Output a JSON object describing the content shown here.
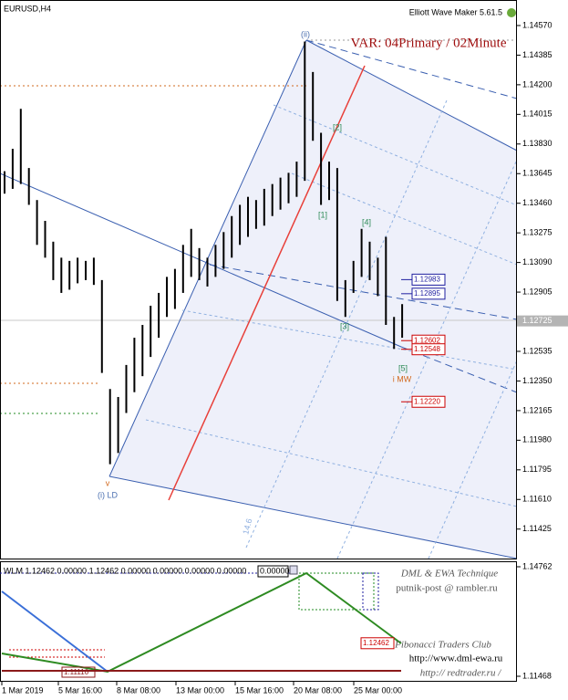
{
  "chart_data": [
    {
      "type": "ohlc",
      "title": "EURUSD,H4",
      "subtitle": "Elliott Wave Maker 5.61.5",
      "annotation": "VAR: 04Primary / 02Minute",
      "color": "#000000",
      "high": [
        1.1366,
        1.138,
        1.1405,
        1.1368,
        1.1348,
        1.1335,
        1.1322,
        1.1312,
        1.131,
        1.1312,
        1.131,
        1.1312,
        1.1298,
        1.123,
        1.1225,
        1.1245,
        1.1262,
        1.127,
        1.1282,
        1.129,
        1.13,
        1.1305,
        1.132,
        1.133,
        1.1318,
        1.1312,
        1.132,
        1.1328,
        1.1338,
        1.1345,
        1.135,
        1.1348,
        1.1355,
        1.1358,
        1.1362,
        1.1365,
        1.1372,
        1.1447,
        1.1428,
        1.139,
        1.1372,
        1.1368,
        1.1298,
        1.131,
        1.133,
        1.1322,
        1.1312,
        1.1325,
        1.1275,
        1.1283
      ],
      "low": [
        1.1352,
        1.1355,
        1.1358,
        1.1345,
        1.132,
        1.1312,
        1.1298,
        1.129,
        1.1292,
        1.1296,
        1.1298,
        1.1295,
        1.124,
        1.1183,
        1.119,
        1.1215,
        1.1228,
        1.1238,
        1.125,
        1.1262,
        1.1275,
        1.128,
        1.129,
        1.13,
        1.1298,
        1.1294,
        1.13,
        1.1305,
        1.1312,
        1.132,
        1.1325,
        1.133,
        1.1332,
        1.1338,
        1.1342,
        1.1346,
        1.135,
        1.136,
        1.1385,
        1.1345,
        1.1348,
        1.1285,
        1.1275,
        1.129,
        1.13,
        1.1298,
        1.1288,
        1.127,
        1.1255,
        1.1262
      ],
      "ylim": [
        1.11241,
        1.14718
      ],
      "yticks": [
        {
          "value": 1.1457,
          "label": "1.14570"
        },
        1.14385,
        {
          "value": 1.142,
          "label": "1.14200"
        },
        1.14015,
        {
          "value": 1.1383,
          "label": "1.13830"
        },
        1.13645,
        {
          "value": 1.1346,
          "label": "1.13460"
        },
        1.13275,
        {
          "value": 1.1309,
          "label": "1.13090"
        },
        1.12905,
        1.12535,
        {
          "value": 1.1235,
          "label": "1.12350"
        },
        1.12165,
        {
          "value": 1.1198,
          "label": "1.11980"
        },
        1.11795,
        {
          "value": 1.1161,
          "label": "1.11610"
        },
        1.11425
      ],
      "current_price": 1.12725,
      "price_tags": [
        {
          "value": 1.12983,
          "color": "#1f1fa0"
        },
        {
          "value": 1.12895,
          "color": "#1f1fa0"
        },
        {
          "value": 1.12602,
          "color": "#cc0000"
        },
        {
          "value": 1.12548,
          "color": "#cc0000"
        },
        {
          "value": 1.1222,
          "label": "1.12220",
          "color": "#cc0000"
        }
      ],
      "wave_labels": [
        "(ii)",
        "[1]",
        "[2]",
        "[3]",
        "[4]",
        "[5]",
        "v",
        "(i) LD",
        "i MW",
        "14.6"
      ],
      "x_labels": [
        "1 Mar 2019",
        "5 Mar 16:00",
        "8 Mar 08:00",
        "13 Mar 00:00",
        "15 Mar 16:00",
        "20 Mar 08:00",
        "25 Mar 00:00"
      ]
    },
    {
      "type": "indicator",
      "title": "WLM 1.12462 0.00000 1.12462 0.00000 0.00000 0.00000 0.00000",
      "box": "0.00000",
      "ylim": [
        1.11331,
        1.14899
      ],
      "yticks": [
        1.14762,
        1.11468
      ],
      "price_tags": [
        {
          "value": 1.12462,
          "color": "#cc0000"
        }
      ],
      "low_tag": {
        "value": 1.1111,
        "label": "1.11110"
      },
      "credits": [
        "DML & EWA Technique",
        "putnik-post @ rambler.ru",
        "Fibonacci Traders Club",
        "http://www.dml-ewa.ru",
        "http:// redtrader.ru /"
      ]
    }
  ]
}
